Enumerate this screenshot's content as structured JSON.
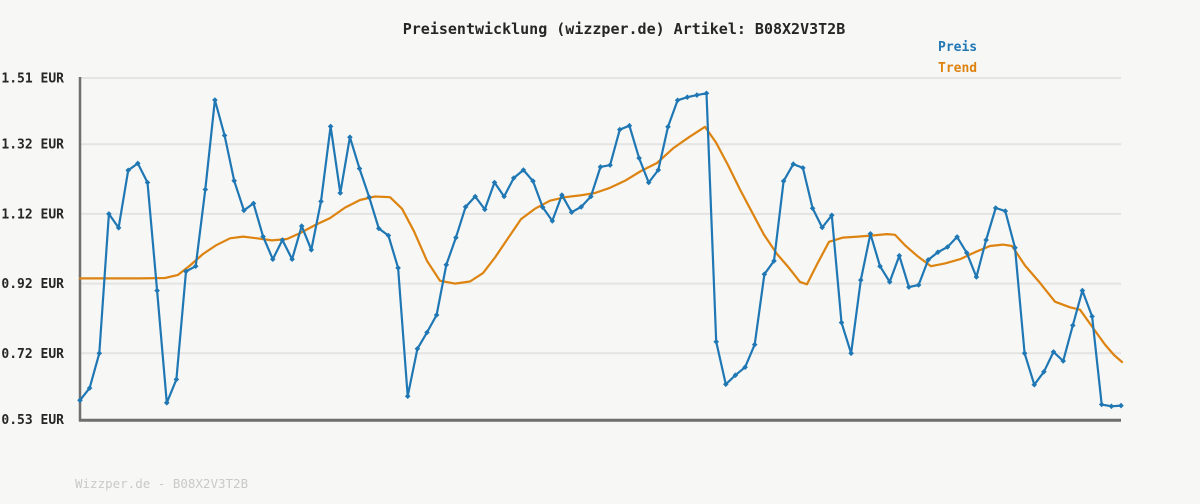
{
  "title": "Preisentwicklung (wizzper.de) Artikel: B08X2V3T2B",
  "legend": {
    "preis_label": "Preis",
    "trend_label": "Trend"
  },
  "footer": "Wizzper.de - B08X2V3T2B",
  "colors": {
    "preis": "#1f77b4",
    "trend": "#dd830f",
    "grid": "#e4e4e3",
    "spine": "#6f6f6f",
    "text": "#262626",
    "footer_text": "#c9c9c9",
    "background": "#f7f7f6"
  },
  "y_axis": {
    "unit": "EUR",
    "ticks": [
      {
        "label": "1.51 EUR",
        "value": 1.51
      },
      {
        "label": "1.32 EUR",
        "value": 1.32
      },
      {
        "label": "1.12 EUR",
        "value": 1.12
      },
      {
        "label": "0.92 EUR",
        "value": 0.92
      },
      {
        "label": "0.72 EUR",
        "value": 0.72
      },
      {
        "label": "0.53 EUR",
        "value": 0.53
      }
    ]
  },
  "chart_data": {
    "type": "line",
    "title": "Preisentwicklung (wizzper.de) Artikel: B08X2V3T2B",
    "xlabel": "",
    "ylabel": "EUR",
    "ylim": [
      0.53,
      1.51
    ],
    "grid": true,
    "legend_position": "top-right",
    "series": [
      {
        "name": "Preis",
        "color": "#1f77b4",
        "marker": "diamond",
        "values": [
          0.585,
          0.62,
          0.72,
          1.12,
          1.08,
          1.245,
          1.265,
          1.21,
          0.9,
          0.578,
          0.645,
          0.955,
          0.97,
          1.19,
          1.447,
          1.345,
          1.215,
          1.13,
          1.15,
          1.055,
          0.99,
          1.045,
          0.99,
          1.085,
          1.017,
          1.156,
          1.371,
          1.18,
          1.34,
          1.25,
          1.168,
          1.078,
          1.058,
          0.965,
          0.597,
          0.733,
          0.78,
          0.83,
          0.974,
          1.052,
          1.14,
          1.17,
          1.133,
          1.21,
          1.17,
          1.223,
          1.246,
          1.214,
          1.139,
          1.1,
          1.174,
          1.125,
          1.14,
          1.17,
          1.255,
          1.26,
          1.362,
          1.373,
          1.28,
          1.21,
          1.246,
          1.37,
          1.446,
          1.455,
          1.461,
          1.466,
          0.753,
          0.631,
          0.657,
          0.68,
          0.745,
          0.947,
          0.985,
          1.214,
          1.263,
          1.252,
          1.136,
          1.081,
          1.116,
          0.808,
          0.72,
          0.93,
          1.063,
          0.97,
          0.925,
          1.0,
          0.91,
          0.916,
          0.988,
          1.01,
          1.025,
          1.054,
          1.008,
          0.939,
          1.045,
          1.137,
          1.128,
          1.023,
          0.72,
          0.63,
          0.667,
          0.724,
          0.698,
          0.8,
          0.9,
          0.826,
          0.573,
          0.568,
          0.57
        ]
      },
      {
        "name": "Trend",
        "color": "#dd830f",
        "marker": "none",
        "points": [
          [
            80,
            0.935
          ],
          [
            110,
            0.935
          ],
          [
            140,
            0.935
          ],
          [
            165,
            0.936
          ],
          [
            178,
            0.945
          ],
          [
            190,
            0.972
          ],
          [
            203,
            1.005
          ],
          [
            216,
            1.03
          ],
          [
            230,
            1.05
          ],
          [
            243,
            1.055
          ],
          [
            257,
            1.05
          ],
          [
            272,
            1.044
          ],
          [
            287,
            1.048
          ],
          [
            300,
            1.065
          ],
          [
            315,
            1.088
          ],
          [
            330,
            1.108
          ],
          [
            345,
            1.138
          ],
          [
            360,
            1.16
          ],
          [
            375,
            1.17
          ],
          [
            390,
            1.168
          ],
          [
            402,
            1.135
          ],
          [
            414,
            1.07
          ],
          [
            427,
            0.985
          ],
          [
            440,
            0.928
          ],
          [
            455,
            0.92
          ],
          [
            470,
            0.926
          ],
          [
            483,
            0.95
          ],
          [
            495,
            0.995
          ],
          [
            508,
            1.05
          ],
          [
            521,
            1.105
          ],
          [
            535,
            1.135
          ],
          [
            550,
            1.158
          ],
          [
            565,
            1.168
          ],
          [
            580,
            1.173
          ],
          [
            595,
            1.18
          ],
          [
            610,
            1.195
          ],
          [
            625,
            1.215
          ],
          [
            641,
            1.243
          ],
          [
            657,
            1.266
          ],
          [
            673,
            1.308
          ],
          [
            689,
            1.34
          ],
          [
            705,
            1.37
          ],
          [
            716,
            1.325
          ],
          [
            728,
            1.26
          ],
          [
            740,
            1.19
          ],
          [
            752,
            1.125
          ],
          [
            764,
            1.06
          ],
          [
            777,
            1.005
          ],
          [
            789,
            0.965
          ],
          [
            800,
            0.925
          ],
          [
            807,
            0.918
          ],
          [
            817,
            0.975
          ],
          [
            829,
            1.04
          ],
          [
            843,
            1.052
          ],
          [
            858,
            1.055
          ],
          [
            872,
            1.058
          ],
          [
            887,
            1.062
          ],
          [
            895,
            1.06
          ],
          [
            905,
            1.03
          ],
          [
            917,
            1.0
          ],
          [
            931,
            0.97
          ],
          [
            945,
            0.978
          ],
          [
            960,
            0.99
          ],
          [
            975,
            1.01
          ],
          [
            990,
            1.028
          ],
          [
            1003,
            1.032
          ],
          [
            1012,
            1.028
          ],
          [
            1025,
            0.972
          ],
          [
            1040,
            0.922
          ],
          [
            1055,
            0.868
          ],
          [
            1070,
            0.852
          ],
          [
            1080,
            0.845
          ],
          [
            1092,
            0.797
          ],
          [
            1105,
            0.745
          ],
          [
            1114,
            0.715
          ],
          [
            1122,
            0.695
          ]
        ]
      }
    ]
  }
}
